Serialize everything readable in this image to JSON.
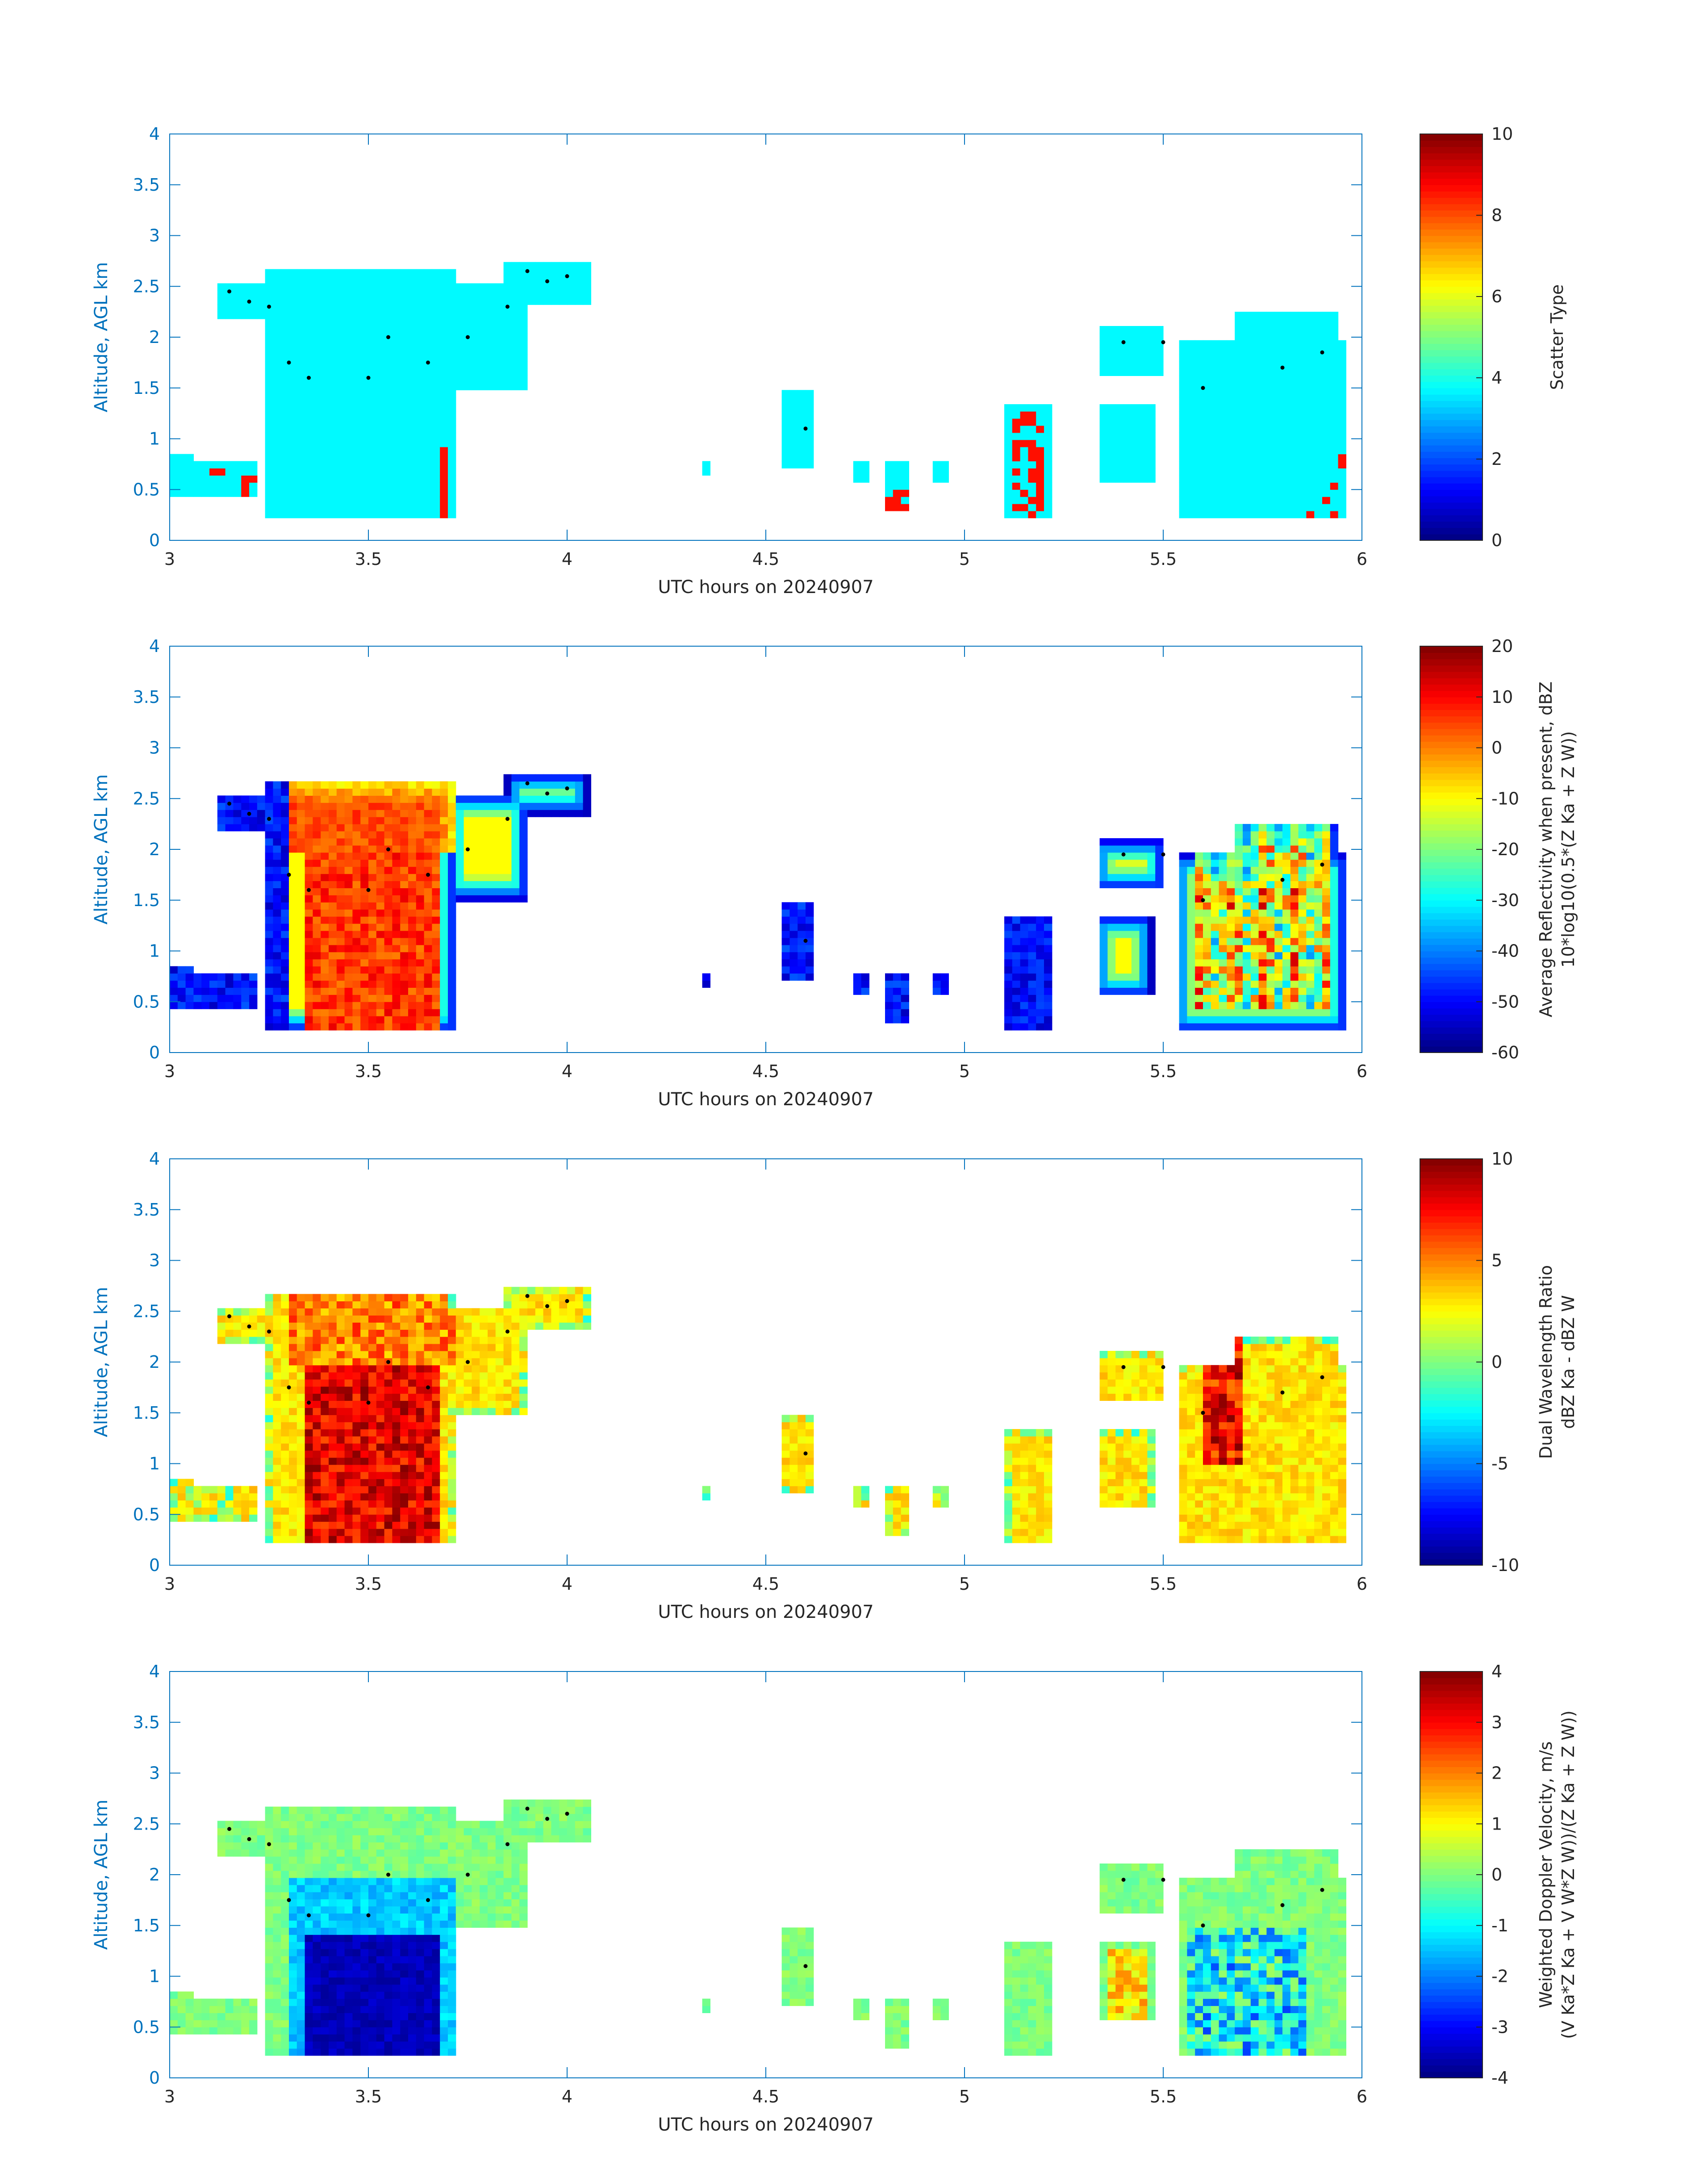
{
  "chart_data": [
    {
      "type": "heatmap",
      "xlabel": "UTC hours on 20240907",
      "ylabel": "Altitude, AGL km",
      "xlim": [
        3,
        6
      ],
      "ylim": [
        0,
        4
      ],
      "xticks": [
        "3",
        "3.5",
        "4",
        "4.5",
        "5",
        "5.5",
        "6"
      ],
      "yticks": [
        "0",
        "0.5",
        "1",
        "1.5",
        "2",
        "2.5",
        "3",
        "3.5",
        "4"
      ],
      "colorbar": {
        "label_lines": [
          "Scatter Type"
        ],
        "clim": [
          0,
          10
        ],
        "ticks": [
          "0",
          "2",
          "4",
          "6",
          "8",
          "10"
        ]
      },
      "colormap": "jet",
      "field": "scatter",
      "cloud_top_dots_km": [
        [
          3.15,
          2.45
        ],
        [
          3.2,
          2.35
        ],
        [
          3.25,
          2.3
        ],
        [
          3.3,
          1.75
        ],
        [
          3.35,
          1.6
        ],
        [
          3.5,
          1.6
        ],
        [
          3.55,
          2.0
        ],
        [
          3.65,
          1.75
        ],
        [
          3.75,
          2.0
        ],
        [
          3.85,
          2.3
        ],
        [
          3.9,
          2.65
        ],
        [
          3.95,
          2.55
        ],
        [
          4.0,
          2.6
        ],
        [
          4.6,
          1.1
        ],
        [
          5.4,
          1.95
        ],
        [
          5.5,
          1.95
        ],
        [
          5.6,
          1.5
        ],
        [
          5.8,
          1.7
        ],
        [
          5.9,
          1.85
        ]
      ]
    },
    {
      "type": "heatmap",
      "xlabel": "UTC hours on 20240907",
      "ylabel": "Altitude, AGL km",
      "xlim": [
        3,
        6
      ],
      "ylim": [
        0,
        4
      ],
      "xticks": [
        "3",
        "3.5",
        "4",
        "4.5",
        "5",
        "5.5",
        "6"
      ],
      "yticks": [
        "0",
        "0.5",
        "1",
        "1.5",
        "2",
        "2.5",
        "3",
        "3.5",
        "4"
      ],
      "colorbar": {
        "label_lines": [
          "Average Reflectivity when present, dBZ",
          "10*log10(0.5*(Z_Ka + Z_W))"
        ],
        "clim": [
          -60,
          20
        ],
        "ticks": [
          "-60",
          "-50",
          "-40",
          "-30",
          "-20",
          "-10",
          "0",
          "10",
          "20"
        ]
      },
      "colormap": "jet",
      "field": "reflectivity",
      "cloud_top_dots_km": [
        [
          3.15,
          2.45
        ],
        [
          3.2,
          2.35
        ],
        [
          3.25,
          2.3
        ],
        [
          3.3,
          1.75
        ],
        [
          3.35,
          1.6
        ],
        [
          3.5,
          1.6
        ],
        [
          3.55,
          2.0
        ],
        [
          3.65,
          1.75
        ],
        [
          3.75,
          2.0
        ],
        [
          3.85,
          2.3
        ],
        [
          3.9,
          2.65
        ],
        [
          3.95,
          2.55
        ],
        [
          4.0,
          2.6
        ],
        [
          4.6,
          1.1
        ],
        [
          5.4,
          1.95
        ],
        [
          5.5,
          1.95
        ],
        [
          5.6,
          1.5
        ],
        [
          5.8,
          1.7
        ],
        [
          5.9,
          1.85
        ]
      ]
    },
    {
      "type": "heatmap",
      "xlabel": "UTC hours on 20240907",
      "ylabel": "Altitude, AGL km",
      "xlim": [
        3,
        6
      ],
      "ylim": [
        0,
        4
      ],
      "xticks": [
        "3",
        "3.5",
        "4",
        "4.5",
        "5",
        "5.5",
        "6"
      ],
      "yticks": [
        "0",
        "0.5",
        "1",
        "1.5",
        "2",
        "2.5",
        "3",
        "3.5",
        "4"
      ],
      "colorbar": {
        "label_lines": [
          "Dual Wavelength Ratio",
          "dBZ_Ka - dBZ_W"
        ],
        "clim": [
          -10,
          10
        ],
        "ticks": [
          "-10",
          "-5",
          "0",
          "5",
          "10"
        ]
      },
      "colormap": "jet",
      "field": "dwr",
      "cloud_top_dots_km": [
        [
          3.15,
          2.45
        ],
        [
          3.2,
          2.35
        ],
        [
          3.25,
          2.3
        ],
        [
          3.3,
          1.75
        ],
        [
          3.35,
          1.6
        ],
        [
          3.5,
          1.6
        ],
        [
          3.55,
          2.0
        ],
        [
          3.65,
          1.75
        ],
        [
          3.75,
          2.0
        ],
        [
          3.85,
          2.3
        ],
        [
          3.9,
          2.65
        ],
        [
          3.95,
          2.55
        ],
        [
          4.0,
          2.6
        ],
        [
          4.6,
          1.1
        ],
        [
          5.4,
          1.95
        ],
        [
          5.5,
          1.95
        ],
        [
          5.6,
          1.5
        ],
        [
          5.8,
          1.7
        ],
        [
          5.9,
          1.85
        ]
      ]
    },
    {
      "type": "heatmap",
      "xlabel": "UTC hours on 20240907",
      "ylabel": "Altitude, AGL km",
      "xlim": [
        3,
        6
      ],
      "ylim": [
        0,
        4
      ],
      "xticks": [
        "3",
        "3.5",
        "4",
        "4.5",
        "5",
        "5.5",
        "6"
      ],
      "yticks": [
        "0",
        "0.5",
        "1",
        "1.5",
        "2",
        "2.5",
        "3",
        "3.5",
        "4"
      ],
      "colorbar": {
        "label_lines": [
          "Weighted Doppler Velocity, m/s",
          "(V_Ka*Z_Ka + V_W*Z_W))/(Z_Ka + Z_W))"
        ],
        "clim": [
          -4,
          4
        ],
        "ticks": [
          "-4",
          "-3",
          "-2",
          "-1",
          "0",
          "1",
          "2",
          "3",
          "4"
        ]
      },
      "colormap": "jet",
      "field": "velocity",
      "cloud_top_dots_km": [
        [
          3.15,
          2.45
        ],
        [
          3.2,
          2.35
        ],
        [
          3.25,
          2.3
        ],
        [
          3.3,
          1.75
        ],
        [
          3.35,
          1.6
        ],
        [
          3.5,
          1.6
        ],
        [
          3.55,
          2.0
        ],
        [
          3.65,
          1.75
        ],
        [
          3.75,
          2.0
        ],
        [
          3.85,
          2.3
        ],
        [
          3.9,
          2.65
        ],
        [
          3.95,
          2.55
        ],
        [
          4.0,
          2.6
        ],
        [
          4.6,
          1.1
        ],
        [
          5.4,
          1.95
        ],
        [
          5.5,
          1.95
        ],
        [
          5.6,
          1.5
        ],
        [
          5.8,
          1.7
        ],
        [
          5.9,
          1.85
        ]
      ]
    }
  ],
  "echo_regions": [
    {
      "x": [
        3.01,
        3.05
      ],
      "ybot": 0.45,
      "ytop": 0.85
    },
    {
      "x": [
        3.06,
        3.13
      ],
      "ybot": 0.45,
      "ytop": 0.75
    },
    {
      "x": [
        3.15,
        3.22
      ],
      "ybot": 0.45,
      "ytop": 0.8
    },
    {
      "x": [
        3.13,
        3.28
      ],
      "ybot": 2.2,
      "ytop": 2.5
    },
    {
      "x": [
        3.25,
        3.72
      ],
      "ybot": 0.2,
      "ytop": 2.7
    },
    {
      "x": [
        3.7,
        3.9
      ],
      "ybot": 1.5,
      "ytop": 2.55
    },
    {
      "x": [
        3.85,
        4.05
      ],
      "ybot": 2.35,
      "ytop": 2.75
    },
    {
      "x": [
        4.33,
        4.35
      ],
      "ybot": 0.65,
      "ytop": 0.8
    },
    {
      "x": [
        4.53,
        4.62
      ],
      "ybot": 0.7,
      "ytop": 1.45
    },
    {
      "x": [
        4.72,
        4.75
      ],
      "ybot": 0.6,
      "ytop": 0.8
    },
    {
      "x": [
        4.8,
        4.86
      ],
      "ybot": 0.3,
      "ytop": 0.8
    },
    {
      "x": [
        4.92,
        4.95
      ],
      "ybot": 0.55,
      "ytop": 0.8
    },
    {
      "x": [
        5.1,
        5.22
      ],
      "ybot": 0.2,
      "ytop": 1.35
    },
    {
      "x": [
        5.33,
        5.47
      ],
      "ybot": 0.55,
      "ytop": 1.35
    },
    {
      "x": [
        5.33,
        5.5
      ],
      "ybot": 1.6,
      "ytop": 2.1
    },
    {
      "x": [
        5.53,
        5.96
      ],
      "ybot": 0.2,
      "ytop": 1.95
    },
    {
      "x": [
        5.68,
        5.94
      ],
      "ybot": 1.6,
      "ytop": 2.25
    }
  ]
}
